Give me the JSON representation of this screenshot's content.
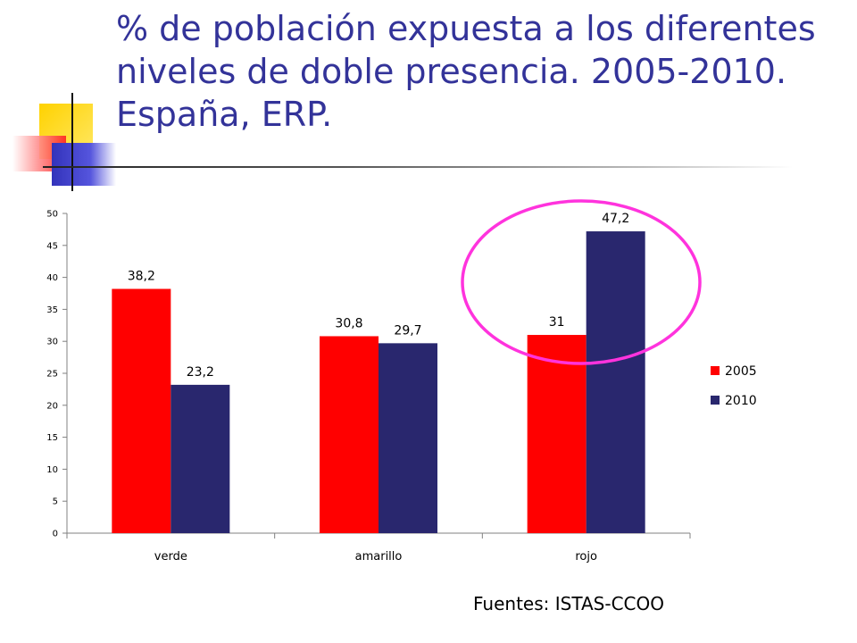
{
  "slide": {
    "title": "% de población expuesta a los diferentes niveles de doble presencia. 2005-2010. España, ERP.",
    "source": "Fuentes: ISTAS-CCOO"
  },
  "colors": {
    "title": "#333399",
    "series_2005": "#ff0000",
    "series_2010": "#29276e",
    "highlight": "#ff33dd"
  },
  "chart_data": {
    "type": "bar",
    "title": "",
    "xlabel": "",
    "ylabel": "",
    "categories": [
      "verde",
      "amarillo",
      "rojo"
    ],
    "series": [
      {
        "name": "2005",
        "values": [
          38.2,
          30.8,
          31
        ],
        "labels": [
          "38,2",
          "30,8",
          "31"
        ]
      },
      {
        "name": "2010",
        "values": [
          23.2,
          29.7,
          47.2
        ],
        "labels": [
          "23,2",
          "29,7",
          "47,2"
        ]
      }
    ],
    "ylim": [
      0,
      50
    ],
    "ytick_step": 5,
    "grid": false,
    "legend": "right",
    "highlight_category": "rojo"
  }
}
